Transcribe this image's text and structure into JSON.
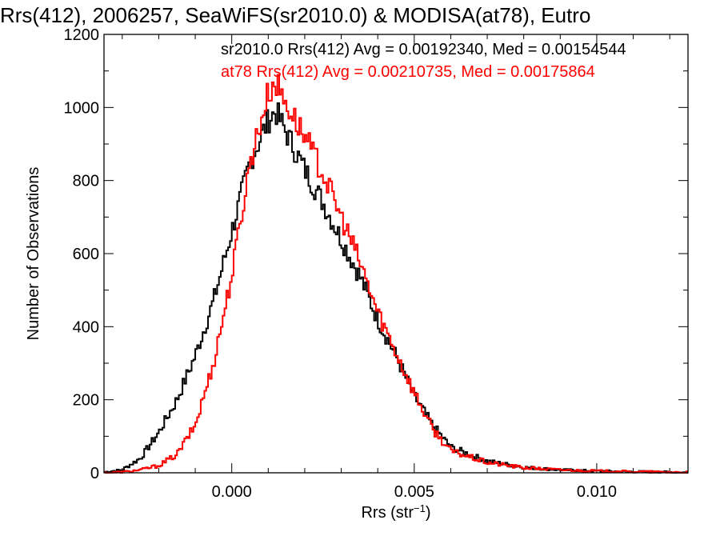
{
  "chart_data": {
    "type": "line",
    "title": "Rrs(412), 2006257, SeaWiFS(sr2010.0) & MODISA(at78), Eutro",
    "xlabel": "Rrs (str⁻¹)",
    "ylabel": "Number of Observations",
    "xlim": [
      -0.0035,
      0.0125
    ],
    "ylim": [
      0,
      1200
    ],
    "xticks": [
      0.0,
      0.005,
      0.01
    ],
    "xtick_labels": [
      "0.000",
      "0.005",
      "0.010"
    ],
    "yticks": [
      0,
      200,
      400,
      600,
      800,
      1000,
      1200
    ],
    "ytick_labels": [
      "0",
      "200",
      "400",
      "600",
      "800",
      "1000",
      "1200"
    ],
    "grid": false,
    "legend_position": "top-right",
    "x": [
      -0.0035,
      -0.003,
      -0.0025,
      -0.002,
      -0.0015,
      -0.001,
      -0.0005,
      0.0,
      0.0005,
      0.001,
      0.0012,
      0.0015,
      0.002,
      0.0025,
      0.003,
      0.0035,
      0.004,
      0.0045,
      0.005,
      0.0055,
      0.006,
      0.007,
      0.008,
      0.009,
      0.01,
      0.011,
      0.0125
    ],
    "series": [
      {
        "name": "sr2010.0 Rrs(412) Avg = 0.00192340, Med = 0.00154544",
        "color": "#000000",
        "values": [
          2,
          8,
          40,
          110,
          200,
          320,
          470,
          660,
          850,
          965,
          990,
          930,
          830,
          740,
          640,
          540,
          420,
          320,
          210,
          130,
          70,
          32,
          15,
          8,
          5,
          3,
          1
        ]
      },
      {
        "name": "at78 Rrs(412) Avg = 0.00210735, Med = 0.00175864",
        "color": "#ff0000",
        "values": [
          0,
          2,
          8,
          20,
          50,
          130,
          300,
          540,
          850,
          1040,
          1070,
          1010,
          920,
          820,
          700,
          580,
          440,
          330,
          220,
          120,
          60,
          28,
          14,
          8,
          5,
          3,
          1
        ]
      }
    ]
  }
}
